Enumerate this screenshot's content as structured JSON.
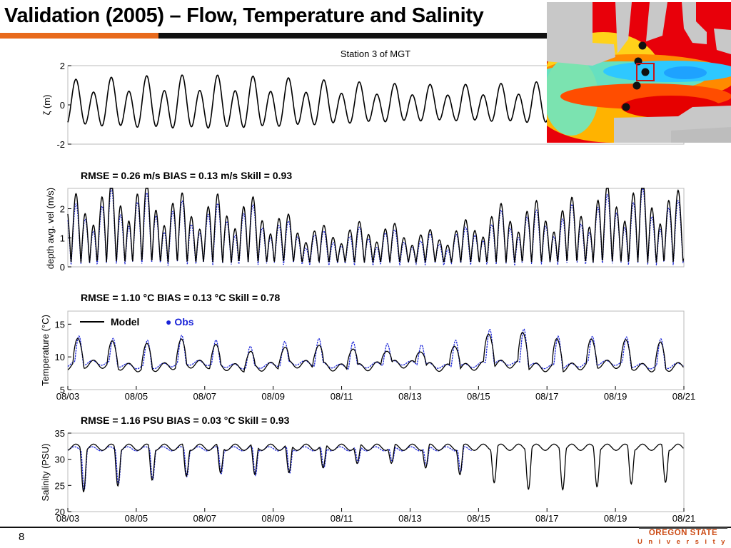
{
  "slide": {
    "title": "Validation (2005) – Flow, Temperature and Salinity",
    "slide_number": "8",
    "logo_line1": "OREGON STATE",
    "logo_line2": "University"
  },
  "colors": {
    "model": "#000000",
    "obs": "#1a24d8",
    "title_orange": "#e86a1c"
  },
  "chart_data": [
    {
      "type": "line",
      "title": "Station 3 of MGT",
      "ylabel": "ζ (m)",
      "ylim": [
        -2,
        2
      ],
      "yticks": [
        2,
        0,
        -2
      ],
      "xlim": [
        3,
        21
      ],
      "series": [
        {
          "kind": "model",
          "signal": "tidal elevation"
        }
      ]
    },
    {
      "type": "line",
      "stats": "RMSE = 0.26 m/s   BIAS = 0.13 m/s   Skill = 0.93",
      "ylabel": "depth avg. vel (m/s)",
      "ylim": [
        0,
        2.7
      ],
      "yticks": [
        0,
        1,
        2
      ],
      "xlim": [
        3,
        21
      ],
      "series": [
        {
          "kind": "model"
        },
        {
          "kind": "obs"
        }
      ]
    },
    {
      "type": "line",
      "stats": "RMSE = 1.10 °C   BIAS = 0.13 °C   Skill = 0.78",
      "ylabel": "Temperature (°C)",
      "ylim": [
        5,
        17
      ],
      "yticks": [
        15,
        10,
        5
      ],
      "xlim": [
        3,
        21
      ],
      "xticks": [
        "08/03",
        "08/05",
        "08/07",
        "08/09",
        "08/11",
        "08/13",
        "08/15",
        "08/17",
        "08/19",
        "08/21"
      ],
      "legend": {
        "model": "Model",
        "obs": "● Obs"
      },
      "series": [
        {
          "kind": "model"
        },
        {
          "kind": "obs"
        }
      ]
    },
    {
      "type": "line",
      "stats": "RMSE = 1.16 PSU  BIAS = 0.03 °C   Skill = 0.93",
      "ylabel": "Salinity (PSU)",
      "ylim": [
        20,
        35
      ],
      "yticks": [
        35,
        30,
        25,
        20
      ],
      "xlim": [
        3,
        21
      ],
      "xticks": [
        "08/03",
        "08/05",
        "08/07",
        "08/09",
        "08/11",
        "08/13",
        "08/15",
        "08/17",
        "08/19",
        "08/21"
      ],
      "obs_end_day": 14.8,
      "series": [
        {
          "kind": "model"
        },
        {
          "kind": "obs"
        }
      ]
    }
  ]
}
